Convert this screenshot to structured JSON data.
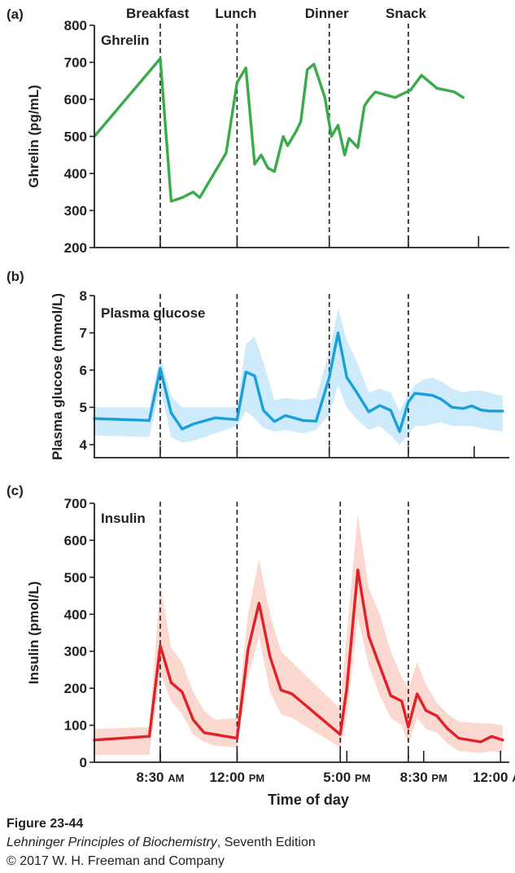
{
  "meal_labels": [
    "Breakfast",
    "Lunch",
    "Dinner",
    "Snack"
  ],
  "xaxis": {
    "title": "Time of day",
    "ticks": [
      {
        "t": 8.5,
        "time": "8:30",
        "ampm": "AM"
      },
      {
        "t": 12,
        "time": "12:00",
        "ampm": "PM"
      },
      {
        "t": 17,
        "time": "5:00",
        "ampm": "PM"
      },
      {
        "t": 20.5,
        "time": "8:30",
        "ampm": "PM"
      },
      {
        "t": 24,
        "time": "12:00",
        "ampm": "AM"
      }
    ]
  },
  "caption": {
    "figure": "Figure 23-44",
    "book_title": "Lehninger Principles of Biochemistry",
    "book_edition": ", Seventh Edition",
    "copyright": "© 2017 W. H. Freeman and Company"
  },
  "colors": {
    "ghrelin": "#3aab4a",
    "glucose": "#1a9fdb",
    "glucose_band": "#cdebfa",
    "insulin": "#e02128",
    "insulin_band": "#fbd9d0"
  },
  "chart_data": [
    {
      "type": "line",
      "panel": "(a)",
      "title": "Ghrelin",
      "xlabel": "",
      "ylabel": "Ghrelin (pg/mL)",
      "ylim": [
        200,
        800
      ],
      "yticks": [
        200,
        300,
        400,
        500,
        600,
        700,
        800
      ],
      "meal_times": [
        8.5,
        12,
        16.2,
        19.8
      ],
      "extra_tick": 23.0,
      "series": [
        {
          "x": [
            5.5,
            8.5,
            9.0,
            9.5,
            10.0,
            10.3,
            10.9,
            11.5,
            12.0,
            12.4,
            12.8,
            13.1,
            13.4,
            13.7,
            14.1,
            14.3,
            14.7,
            14.9,
            15.2,
            15.5,
            16.0,
            16.3,
            16.6,
            16.9,
            17.1,
            17.5,
            17.8,
            18.0,
            18.3,
            19.2,
            19.9,
            20.4,
            21.1,
            21.9,
            22.3
          ],
          "y": [
            500,
            710,
            325,
            335,
            350,
            335,
            395,
            455,
            645,
            685,
            425,
            450,
            415,
            405,
            500,
            475,
            515,
            540,
            680,
            695,
            605,
            500,
            530,
            450,
            495,
            470,
            582,
            600,
            620,
            605,
            625,
            665,
            630,
            620,
            605
          ]
        }
      ]
    },
    {
      "type": "area",
      "panel": "(b)",
      "title": "Plasma glucose",
      "xlabel": "",
      "ylabel": "Plasma glucose (mmol/L)",
      "ylim": [
        3.65,
        8
      ],
      "yticks": [
        4,
        5,
        6,
        7,
        8
      ],
      "meal_times": [
        8.5,
        12,
        16.2,
        19.8
      ],
      "extra_tick": 22.8,
      "series": [
        {
          "x": [
            5.5,
            8.0,
            8.5,
            9.0,
            9.5,
            10.0,
            11.0,
            12.0,
            12.4,
            12.8,
            13.2,
            13.7,
            14.2,
            15.0,
            15.6,
            16.2,
            16.6,
            17.0,
            17.4,
            18.0,
            18.5,
            19.0,
            19.4,
            19.8,
            20.1,
            20.5,
            20.9,
            21.3,
            21.8,
            22.3,
            22.7,
            23.1,
            23.5,
            24.1
          ],
          "y": [
            4.7,
            4.65,
            6.05,
            4.85,
            4.42,
            4.55,
            4.72,
            4.67,
            5.95,
            5.85,
            4.92,
            4.62,
            4.78,
            4.65,
            4.63,
            5.8,
            7.0,
            5.8,
            5.45,
            4.88,
            5.05,
            4.92,
            4.35,
            5.15,
            5.38,
            5.35,
            5.32,
            5.22,
            5.0,
            4.97,
            5.04,
            4.93,
            4.9,
            4.9
          ],
          "upper": [
            5.0,
            5.0,
            6.4,
            5.3,
            5.0,
            5.0,
            5.0,
            5.0,
            6.7,
            6.9,
            6.2,
            5.2,
            5.25,
            5.2,
            5.25,
            6.5,
            7.65,
            6.8,
            6.3,
            5.4,
            5.5,
            5.4,
            4.9,
            5.35,
            5.6,
            5.75,
            5.8,
            5.7,
            5.5,
            5.4,
            5.45,
            5.45,
            5.4,
            5.3
          ],
          "lower": [
            4.25,
            4.2,
            5.5,
            4.2,
            4.05,
            4.1,
            4.3,
            4.5,
            4.9,
            4.7,
            4.45,
            4.35,
            4.4,
            4.3,
            4.4,
            4.8,
            5.6,
            5.0,
            4.7,
            4.4,
            4.5,
            4.25,
            4.0,
            4.25,
            4.5,
            4.5,
            4.55,
            4.6,
            4.5,
            4.5,
            4.5,
            4.45,
            4.4,
            4.35
          ]
        }
      ]
    },
    {
      "type": "area",
      "panel": "(c)",
      "title": "Insulin",
      "xlabel": "Time of day",
      "ylabel": "Insulin (pmol/L)",
      "ylim": [
        0,
        700
      ],
      "yticks": [
        0,
        100,
        200,
        300,
        400,
        500,
        600,
        700
      ],
      "meal_times": [
        8.5,
        12,
        16.7,
        19.8
      ],
      "series": [
        {
          "x": [
            5.5,
            8.0,
            8.5,
            9.0,
            9.5,
            10.0,
            10.5,
            11.0,
            12.0,
            12.5,
            13.0,
            13.5,
            14.0,
            14.5,
            16.7,
            17.0,
            17.5,
            18.0,
            18.5,
            19.0,
            19.5,
            19.8,
            20.2,
            20.6,
            21.1,
            21.6,
            22.1,
            23.1,
            23.6,
            24.1
          ],
          "y": [
            60,
            70,
            315,
            215,
            190,
            115,
            80,
            75,
            65,
            305,
            430,
            285,
            195,
            185,
            75,
            200,
            520,
            340,
            260,
            180,
            165,
            95,
            185,
            140,
            125,
            90,
            65,
            55,
            70,
            60
          ],
          "upper": [
            90,
            95,
            480,
            310,
            270,
            190,
            140,
            115,
            120,
            400,
            550,
            400,
            300,
            270,
            145,
            350,
            670,
            470,
            400,
            300,
            230,
            200,
            270,
            210,
            160,
            130,
            110,
            105,
            105,
            100
          ],
          "lower": [
            20,
            20,
            240,
            165,
            130,
            75,
            55,
            45,
            40,
            230,
            340,
            190,
            130,
            120,
            40,
            120,
            390,
            260,
            180,
            120,
            100,
            50,
            120,
            90,
            80,
            50,
            30,
            25,
            30,
            25
          ]
        }
      ]
    }
  ]
}
